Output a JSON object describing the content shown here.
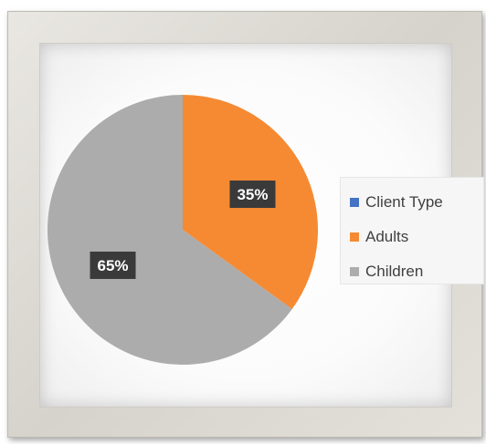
{
  "chart_data": {
    "type": "pie",
    "slices": [
      {
        "label": "Adults",
        "value": 35,
        "color": "#f58a33",
        "data_label": "35%"
      },
      {
        "label": "Children",
        "value": 65,
        "color": "#acacac",
        "data_label": "65%"
      }
    ],
    "legend": {
      "placement": "right",
      "items": [
        {
          "label": "Client Type",
          "color": "#4472c4"
        },
        {
          "label": "Adults",
          "color": "#f58a33"
        },
        {
          "label": "Children",
          "color": "#acacac"
        }
      ]
    },
    "data_label_style": {
      "background": "#3a3a3a",
      "text_color": "#ffffff"
    }
  }
}
